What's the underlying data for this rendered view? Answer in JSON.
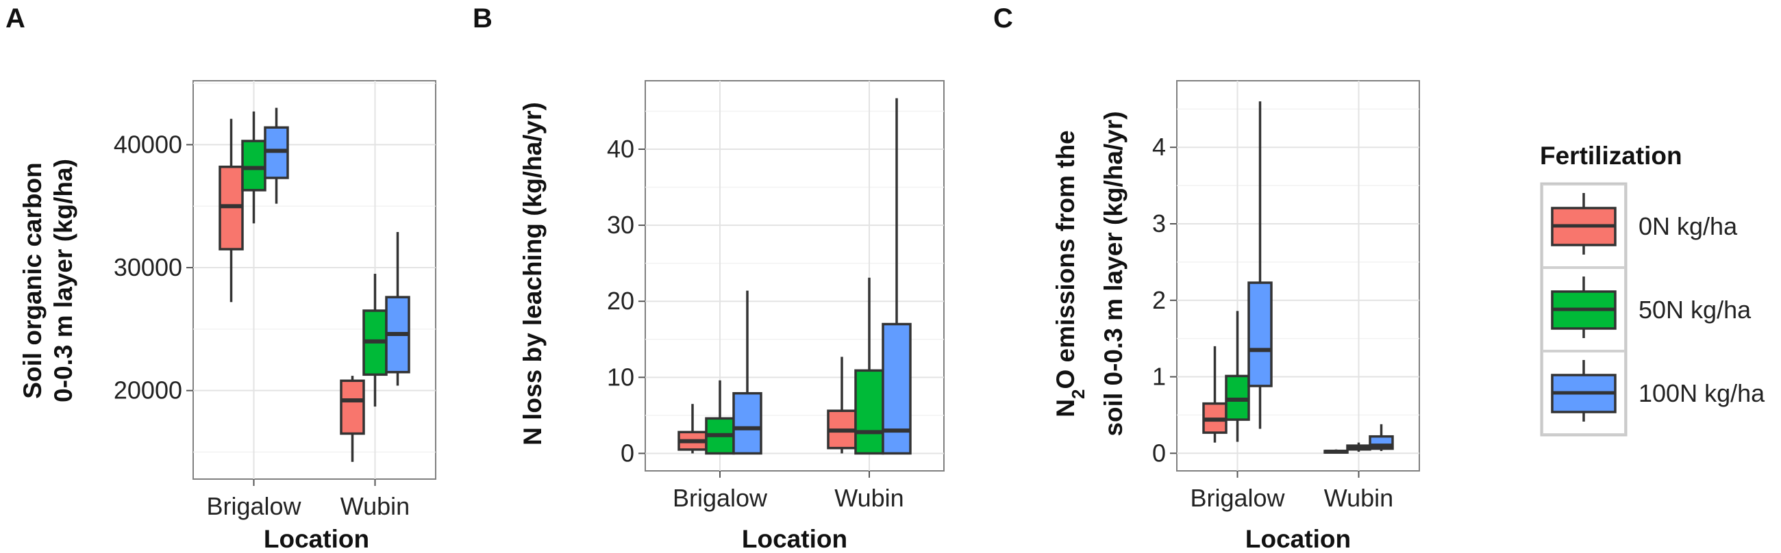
{
  "legend": {
    "title": "Fertilization",
    "items": [
      {
        "label": "0N kg/ha",
        "color": "#f8766d"
      },
      {
        "label": "50N kg/ha",
        "color": "#00ba38"
      },
      {
        "label": "100N kg/ha",
        "color": "#619cff"
      }
    ]
  },
  "chart_data": [
    {
      "type": "boxplot",
      "panel_label": "A",
      "xlabel": "Location",
      "ylabel_lines": [
        "Soil organic carbon",
        "0-0.3 m layer (kg/ha)"
      ],
      "categories": [
        "Brigalow",
        "Wubin"
      ],
      "ylim": [
        12800,
        45200
      ],
      "yticks": [
        20000,
        30000,
        40000
      ],
      "series": [
        {
          "name": "0N kg/ha",
          "color": "#f8766d",
          "boxes": [
            {
              "min": 27200,
              "q1": 31500,
              "median": 35000,
              "q3": 38200,
              "max": 42100
            },
            {
              "min": 14200,
              "q1": 16500,
              "median": 19200,
              "q3": 20800,
              "max": 21200
            }
          ]
        },
        {
          "name": "50N kg/ha",
          "color": "#00ba38",
          "boxes": [
            {
              "min": 33600,
              "q1": 36300,
              "median": 38100,
              "q3": 40300,
              "max": 42700
            },
            {
              "min": 18700,
              "q1": 21300,
              "median": 24000,
              "q3": 26500,
              "max": 29500
            }
          ]
        },
        {
          "name": "100N kg/ha",
          "color": "#619cff",
          "boxes": [
            {
              "min": 35200,
              "q1": 37300,
              "median": 39500,
              "q3": 41400,
              "max": 43000
            },
            {
              "min": 20400,
              "q1": 21500,
              "median": 24600,
              "q3": 27600,
              "max": 32900
            }
          ]
        }
      ]
    },
    {
      "type": "boxplot",
      "panel_label": "B",
      "xlabel": "Location",
      "ylabel_lines": [
        "N loss by leaching (kg/ha/yr)"
      ],
      "categories": [
        "Brigalow",
        "Wubin"
      ],
      "ylim": [
        -2.3,
        49
      ],
      "yticks": [
        0,
        10,
        20,
        30,
        40
      ],
      "series": [
        {
          "name": "0N kg/ha",
          "color": "#f8766d",
          "boxes": [
            {
              "min": 0,
              "q1": 0.5,
              "median": 1.6,
              "q3": 2.8,
              "max": 6.5
            },
            {
              "min": 0,
              "q1": 0.7,
              "median": 3.0,
              "q3": 5.6,
              "max": 12.7
            }
          ]
        },
        {
          "name": "50N kg/ha",
          "color": "#00ba38",
          "boxes": [
            {
              "min": 0,
              "q1": 0,
              "median": 2.4,
              "q3": 4.6,
              "max": 9.6
            },
            {
              "min": 0,
              "q1": 0,
              "median": 2.8,
              "q3": 10.9,
              "max": 23.1
            }
          ]
        },
        {
          "name": "100N kg/ha",
          "color": "#619cff",
          "boxes": [
            {
              "min": 0,
              "q1": 0,
              "median": 3.3,
              "q3": 7.9,
              "max": 21.4
            },
            {
              "min": 0,
              "q1": 0,
              "median": 3.0,
              "q3": 17.0,
              "max": 46.7
            }
          ]
        }
      ]
    },
    {
      "type": "boxplot",
      "panel_label": "C",
      "xlabel": "Location",
      "ylabel_lines": [
        "N2O emissions from the",
        "soil 0-0.3 m layer (kg/ha/yr)"
      ],
      "categories": [
        "Brigalow",
        "Wubin"
      ],
      "ylim": [
        -0.23,
        4.87
      ],
      "yticks": [
        0,
        1,
        2,
        3,
        4
      ],
      "series": [
        {
          "name": "0N kg/ha",
          "color": "#f8766d",
          "boxes": [
            {
              "min": 0.14,
              "q1": 0.27,
              "median": 0.44,
              "q3": 0.65,
              "max": 1.4
            },
            {
              "min": 0.0,
              "q1": 0.01,
              "median": 0.02,
              "q3": 0.03,
              "max": 0.05
            }
          ]
        },
        {
          "name": "50N kg/ha",
          "color": "#00ba38",
          "boxes": [
            {
              "min": 0.15,
              "q1": 0.44,
              "median": 0.7,
              "q3": 1.01,
              "max": 1.86
            },
            {
              "min": 0.02,
              "q1": 0.05,
              "median": 0.08,
              "q3": 0.1,
              "max": 0.14
            }
          ]
        },
        {
          "name": "100N kg/ha",
          "color": "#619cff",
          "boxes": [
            {
              "min": 0.32,
              "q1": 0.88,
              "median": 1.35,
              "q3": 2.23,
              "max": 4.6
            },
            {
              "min": 0.03,
              "q1": 0.06,
              "median": 0.1,
              "q3": 0.22,
              "max": 0.38
            }
          ]
        }
      ]
    }
  ]
}
